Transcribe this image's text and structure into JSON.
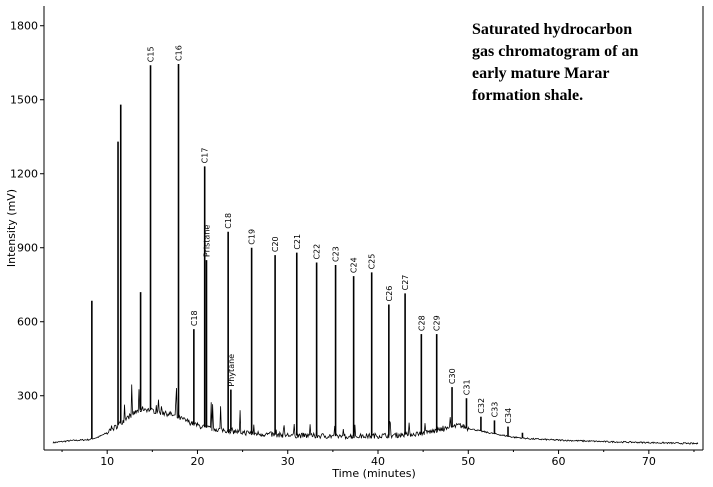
{
  "chart_data": {
    "type": "line",
    "title": "",
    "xlabel": "Time (minutes)",
    "ylabel": "Intensity (mV)",
    "xlim": [
      3,
      76
    ],
    "ylim": [
      80,
      1880
    ],
    "x_ticks": [
      10,
      20,
      30,
      40,
      50,
      60,
      70
    ],
    "y_ticks": [
      300,
      600,
      900,
      1200,
      1500,
      1800
    ],
    "grid": false,
    "annotation": [
      "Saturated hydrocarbon",
      "gas chromatogram of an",
      "early mature Marar",
      "formation shale."
    ],
    "baseline": [
      [
        4,
        110
      ],
      [
        6,
        118
      ],
      [
        8,
        122
      ],
      [
        9,
        132
      ],
      [
        10,
        150
      ],
      [
        11,
        175
      ],
      [
        12,
        205
      ],
      [
        13,
        230
      ],
      [
        14,
        248
      ],
      [
        15,
        240
      ],
      [
        16,
        232
      ],
      [
        17,
        225
      ],
      [
        18,
        210
      ],
      [
        19,
        195
      ],
      [
        20,
        180
      ],
      [
        21,
        170
      ],
      [
        22,
        165
      ],
      [
        23,
        160
      ],
      [
        24,
        155
      ],
      [
        26,
        148
      ],
      [
        28,
        143
      ],
      [
        30,
        140
      ],
      [
        32,
        138
      ],
      [
        34,
        137
      ],
      [
        36,
        136
      ],
      [
        38,
        136
      ],
      [
        40,
        138
      ],
      [
        42,
        140
      ],
      [
        44,
        145
      ],
      [
        46,
        155
      ],
      [
        48,
        170
      ],
      [
        49,
        180
      ],
      [
        50,
        168
      ],
      [
        51,
        160
      ],
      [
        52,
        152
      ],
      [
        53,
        145
      ],
      [
        55,
        132
      ],
      [
        57,
        125
      ],
      [
        60,
        120
      ],
      [
        65,
        114
      ],
      [
        70,
        110
      ],
      [
        75,
        106
      ]
    ],
    "peaks": [
      {
        "x": 8.3,
        "y": 685,
        "label": ""
      },
      {
        "x": 11.2,
        "y": 1330,
        "label": ""
      },
      {
        "x": 11.5,
        "y": 1480,
        "label": ""
      },
      {
        "x": 13.7,
        "y": 720,
        "label": ""
      },
      {
        "x": 14.8,
        "y": 1640,
        "label": "C15"
      },
      {
        "x": 17.9,
        "y": 1645,
        "label": "C16"
      },
      {
        "x": 19.6,
        "y": 570,
        "label": "C18"
      },
      {
        "x": 20.8,
        "y": 1230,
        "label": "C17"
      },
      {
        "x": 21.0,
        "y": 850,
        "label": "Pristane"
      },
      {
        "x": 23.4,
        "y": 965,
        "label": "C18"
      },
      {
        "x": 23.7,
        "y": 325,
        "label": "Phytane"
      },
      {
        "x": 26.0,
        "y": 900,
        "label": "C19"
      },
      {
        "x": 28.6,
        "y": 870,
        "label": "C20"
      },
      {
        "x": 31.0,
        "y": 880,
        "label": "C21"
      },
      {
        "x": 33.2,
        "y": 840,
        "label": "C22"
      },
      {
        "x": 35.3,
        "y": 830,
        "label": "C23"
      },
      {
        "x": 37.3,
        "y": 785,
        "label": "C24"
      },
      {
        "x": 39.3,
        "y": 800,
        "label": "C25"
      },
      {
        "x": 41.2,
        "y": 670,
        "label": "C26"
      },
      {
        "x": 43.0,
        "y": 715,
        "label": "C27"
      },
      {
        "x": 44.8,
        "y": 550,
        "label": "C28"
      },
      {
        "x": 46.5,
        "y": 550,
        "label": "C29"
      },
      {
        "x": 48.2,
        "y": 335,
        "label": "C30"
      },
      {
        "x": 49.8,
        "y": 290,
        "label": "C31"
      },
      {
        "x": 51.4,
        "y": 215,
        "label": "C32"
      },
      {
        "x": 52.9,
        "y": 200,
        "label": "C33"
      },
      {
        "x": 54.4,
        "y": 175,
        "label": "C34"
      },
      {
        "x": 56.0,
        "y": 150,
        "label": ""
      }
    ]
  }
}
